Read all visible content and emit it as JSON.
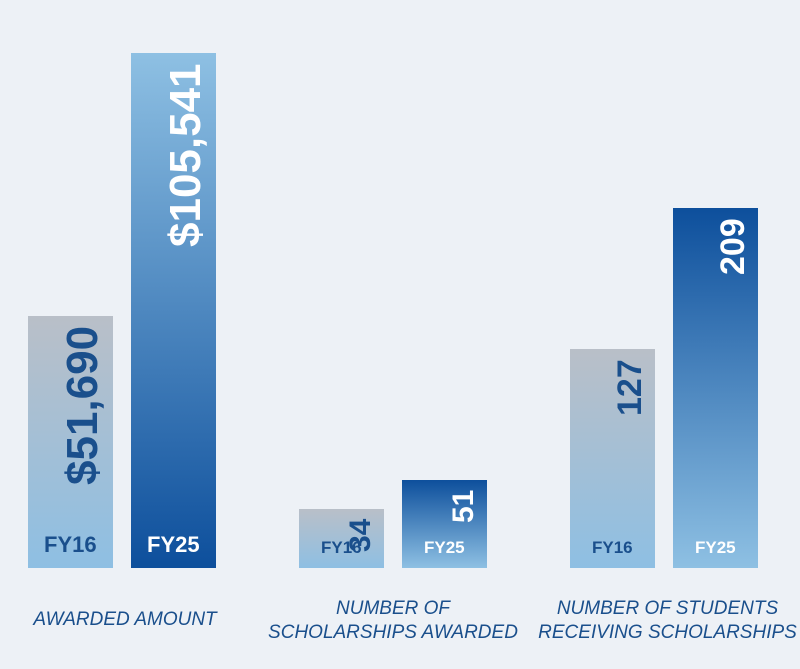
{
  "chart_data": [
    {
      "type": "bar",
      "label": "AWARDED AMOUNT",
      "categories": [
        "FY16",
        "FY25"
      ],
      "values": [
        51690,
        105541
      ],
      "value_labels": [
        "$51,690",
        "$105,541"
      ],
      "ylim": [
        0,
        112000
      ]
    },
    {
      "type": "bar",
      "label_lines": [
        "NUMBER OF",
        "SCHOLARSHIPS AWARDED"
      ],
      "categories": [
        "FY16",
        "FY25"
      ],
      "values": [
        34,
        51
      ],
      "value_labels": [
        "34",
        "51"
      ],
      "ylim": [
        0,
        264
      ]
    },
    {
      "type": "bar",
      "label_lines": [
        "NUMBER OF STUDENTS",
        "RECEIVING SCHOLARSHIPS"
      ],
      "categories": [
        "FY16",
        "FY25"
      ],
      "values": [
        127,
        209
      ],
      "value_labels": [
        "127",
        "209"
      ],
      "ylim": [
        0,
        264
      ]
    }
  ],
  "colors": {
    "background": "#edf1f6",
    "fy16_top": "#b9bfc8",
    "fy16_bottom": "#8ebfe3",
    "fy25_top": "#0d4f9c",
    "fy25_bottom": "#8ec0e3",
    "fy25_first_top": "#8ec0e3",
    "fy25_first_bottom": "#0d4f9c",
    "label_dark": "#1a4f8c",
    "label_light": "#ffffff"
  }
}
